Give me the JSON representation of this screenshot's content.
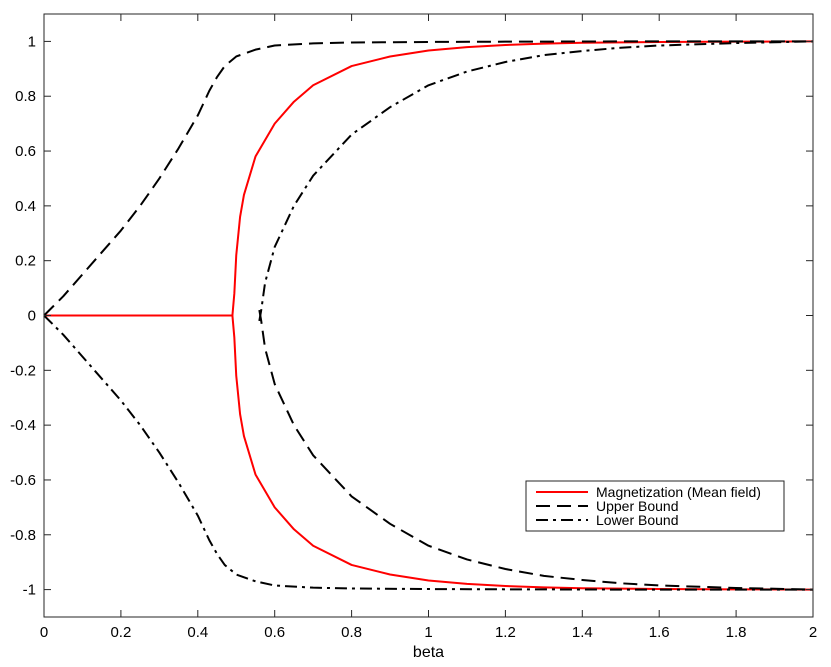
{
  "chart_data": {
    "type": "line",
    "xlabel": "beta",
    "ylabel": "",
    "title": "",
    "xlim": [
      0,
      2
    ],
    "ylim": [
      -1.1,
      1.1
    ],
    "xticks": [
      0,
      0.2,
      0.4,
      0.6,
      0.8,
      1,
      1.2,
      1.4,
      1.6,
      1.8,
      2
    ],
    "xtick_labels": [
      "0",
      "0.2",
      "0.4",
      "0.6",
      "0.8",
      "1",
      "1.2",
      "1.4",
      "1.6",
      "1.8",
      "2"
    ],
    "yticks": [
      -1,
      -0.8,
      -0.6,
      -0.4,
      -0.2,
      0,
      0.2,
      0.4,
      0.6,
      0.8,
      1
    ],
    "ytick_labels": [
      "-1",
      "-0.8",
      "-0.6",
      "-0.4",
      "-0.2",
      "0",
      "0.2",
      "0.4",
      "0.6",
      "0.8",
      "1"
    ],
    "grid": false,
    "legend_position": "bottom-right",
    "series": [
      {
        "name": "Magnetization (Mean field)",
        "color": "#ff0000",
        "style": "solid",
        "branches": [
          {
            "x": [
              0,
              0.2,
              0.4,
              0.49,
              0.495,
              0.5,
              0.51,
              0.52,
              0.55,
              0.6,
              0.65,
              0.7,
              0.8,
              0.9,
              1.0,
              1.1,
              1.2,
              1.3,
              1.4,
              1.6,
              1.8,
              2.0
            ],
            "y": [
              0,
              0,
              0,
              0,
              0.08,
              0.22,
              0.36,
              0.44,
              0.58,
              0.7,
              0.78,
              0.84,
              0.91,
              0.945,
              0.967,
              0.979,
              0.987,
              0.992,
              0.995,
              0.998,
              0.999,
              1.0
            ]
          },
          {
            "x": [
              0.49,
              0.495,
              0.5,
              0.51,
              0.52,
              0.55,
              0.6,
              0.65,
              0.7,
              0.8,
              0.9,
              1.0,
              1.1,
              1.2,
              1.3,
              1.4,
              1.6,
              1.8,
              2.0
            ],
            "y": [
              0,
              -0.08,
              -0.22,
              -0.36,
              -0.44,
              -0.58,
              -0.7,
              -0.78,
              -0.84,
              -0.91,
              -0.945,
              -0.967,
              -0.979,
              -0.987,
              -0.992,
              -0.995,
              -0.998,
              -0.999,
              -1.0
            ]
          }
        ]
      },
      {
        "name": "Upper Bound",
        "color": "#000000",
        "style": "dashed",
        "branches": [
          {
            "x": [
              0,
              0.05,
              0.1,
              0.15,
              0.2,
              0.25,
              0.3,
              0.35,
              0.4,
              0.43,
              0.45,
              0.47,
              0.5,
              0.55,
              0.6,
              0.7,
              0.8,
              1.0,
              1.2,
              1.5,
              2.0
            ],
            "y": [
              0,
              0.07,
              0.15,
              0.23,
              0.31,
              0.4,
              0.5,
              0.61,
              0.73,
              0.82,
              0.87,
              0.91,
              0.945,
              0.97,
              0.985,
              0.993,
              0.996,
              0.998,
              0.999,
              1.0,
              1.0
            ]
          },
          {
            "x": [
              0.56,
              0.565,
              0.575,
              0.6,
              0.65,
              0.7,
              0.8,
              0.9,
              1.0,
              1.1,
              1.2,
              1.3,
              1.4,
              1.5,
              1.6,
              1.8,
              2.0
            ],
            "y": [
              0.02,
              -0.02,
              -0.12,
              -0.25,
              -0.4,
              -0.51,
              -0.66,
              -0.76,
              -0.84,
              -0.89,
              -0.925,
              -0.95,
              -0.965,
              -0.977,
              -0.985,
              -0.994,
              -1.0
            ]
          }
        ]
      },
      {
        "name": "Lower Bound",
        "color": "#000000",
        "style": "dashdot",
        "branches": [
          {
            "x": [
              0,
              0.05,
              0.1,
              0.15,
              0.2,
              0.25,
              0.3,
              0.35,
              0.4,
              0.43,
              0.45,
              0.47,
              0.5,
              0.55,
              0.6,
              0.7,
              0.8,
              1.0,
              1.2,
              1.5,
              2.0
            ],
            "y": [
              0,
              -0.07,
              -0.15,
              -0.23,
              -0.31,
              -0.4,
              -0.5,
              -0.61,
              -0.73,
              -0.82,
              -0.87,
              -0.91,
              -0.945,
              -0.97,
              -0.985,
              -0.993,
              -0.996,
              -0.998,
              -0.999,
              -1.0,
              -1.0
            ]
          },
          {
            "x": [
              0.56,
              0.565,
              0.575,
              0.6,
              0.65,
              0.7,
              0.8,
              0.9,
              1.0,
              1.1,
              1.2,
              1.3,
              1.4,
              1.5,
              1.6,
              1.8,
              2.0
            ],
            "y": [
              -0.02,
              0.02,
              0.12,
              0.25,
              0.4,
              0.51,
              0.66,
              0.76,
              0.84,
              0.89,
              0.925,
              0.95,
              0.965,
              0.977,
              0.985,
              0.994,
              1.0
            ]
          }
        ]
      }
    ]
  }
}
